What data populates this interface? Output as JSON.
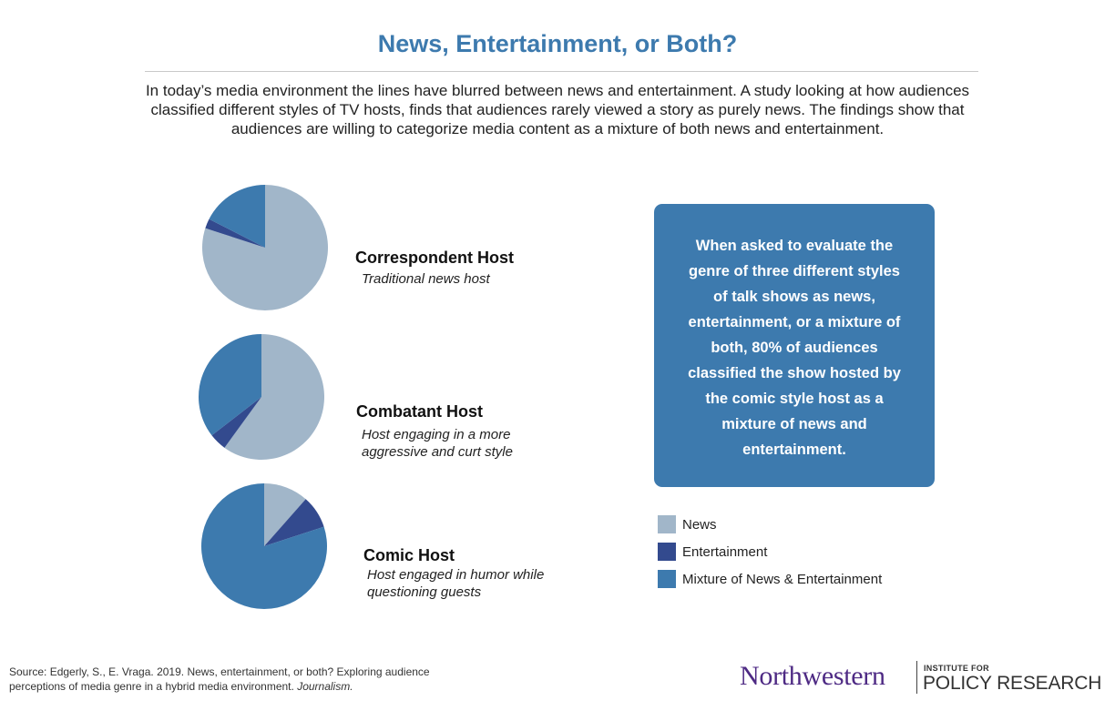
{
  "title": "News, Entertainment, or Both?",
  "intro": "In today’s media environment the lines have blurred between news and entertainment. A study looking at how audiences classified different styles of TV hosts, finds that audiences rarely viewed a story as purely news. The findings show that audiences are willing to categorize media content as a mixture of both news and entertainment.",
  "colors": {
    "news": "#a1b6c9",
    "entertainment": "#334a8e",
    "mixture": "#3d7aae"
  },
  "chart_data": [
    {
      "type": "pie",
      "title": "Correspondent Host",
      "subtitle": "Traditional news host",
      "labels": [
        "News",
        "Entertainment",
        "Mixture of News & Entertainment"
      ],
      "values": [
        80,
        2.5,
        17.5
      ]
    },
    {
      "type": "pie",
      "title": "Combatant Host",
      "subtitle": "Host engaging in a more aggressive and curt style",
      "labels": [
        "News",
        "Entertainment",
        "Mixture of News & Entertainment"
      ],
      "values": [
        60,
        4.5,
        35.5
      ]
    },
    {
      "type": "pie",
      "title": "Comic Host",
      "subtitle": "Host engaged in humor while questioning guests",
      "labels": [
        "News",
        "Entertainment",
        "Mixture of News & Entertainment"
      ],
      "values": [
        11.5,
        8.5,
        80
      ]
    }
  ],
  "hosts": [
    {
      "title": "Correspondent Host",
      "subtitle": "Traditional news host"
    },
    {
      "title": "Combatant Host",
      "subtitle": "Host engaging in a more aggressive and curt style"
    },
    {
      "title": "Comic Host",
      "subtitle": "Host engaged in humor while questioning guests"
    }
  ],
  "callout": "When asked to evaluate the genre of three different styles of talk shows as news, entertainment, or a mixture of both, 80% of audiences classified the show hosted by the comic style host as a mixture of news and entertainment.",
  "legend": [
    {
      "label": "News",
      "color": "#a1b6c9"
    },
    {
      "label": "Entertainment",
      "color": "#334a8e"
    },
    {
      "label": "Mixture of News & Entertainment",
      "color": "#3d7aae"
    }
  ],
  "source": {
    "text": "Source: Edgerly, S., E. Vraga. 2019. News, entertainment, or both? Exploring audience perceptions of media genre in a hybrid media environment.",
    "journal": "Journalism."
  },
  "logo": {
    "university": "Northwestern",
    "institute": "INSTITUTE FOR",
    "name": "POLICY RESEARCH"
  }
}
